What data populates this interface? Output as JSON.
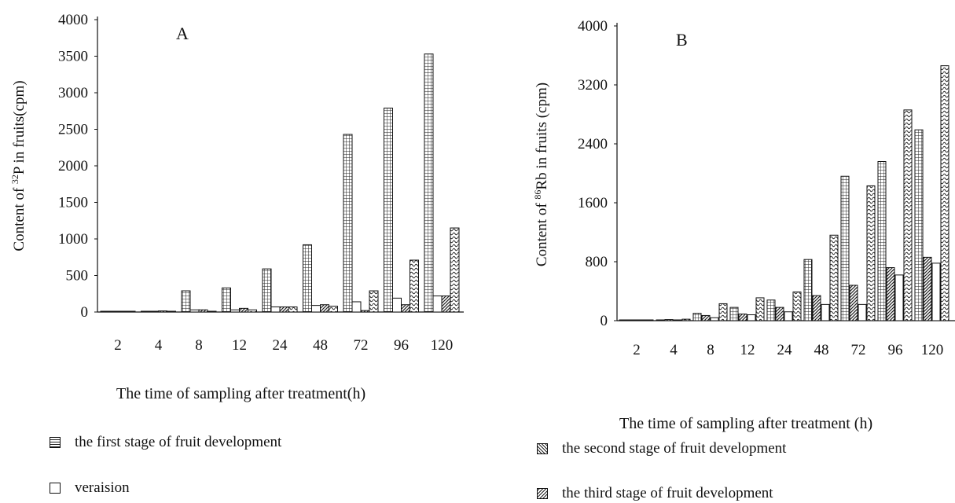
{
  "figure": {
    "legend": [
      {
        "key": "s1",
        "label": "the first stage of fruit development",
        "pattern": "grid"
      },
      {
        "key": "v",
        "label": "veraision",
        "pattern": "box"
      },
      {
        "key": "s2",
        "label": "the second stage of fruit development",
        "pattern": "diag"
      },
      {
        "key": "s3",
        "label": "the third stage of fruit development",
        "pattern": "wave"
      }
    ]
  },
  "chart_data": [
    {
      "type": "bar",
      "panel_label": "A",
      "xlabel": "The time of sampling after treatment(h)",
      "ylabel_prefix": "Content of ",
      "ylabel_sup": "32",
      "ylabel_suffix": "P in fruits(cpm)",
      "categories": [
        "2",
        "4",
        "8",
        "12",
        "24",
        "48",
        "72",
        "96",
        "120"
      ],
      "ylim": [
        0,
        4000
      ],
      "yticks": [
        "0",
        "500",
        "1000",
        "1500",
        "2000",
        "2500",
        "3000",
        "3500",
        "4000"
      ],
      "series": [
        {
          "name": "the first stage of fruit development",
          "pattern": "grid",
          "values": [
            5,
            10,
            290,
            330,
            590,
            920,
            2430,
            2790,
            3530
          ]
        },
        {
          "name": "veraision",
          "pattern": "box",
          "values": [
            5,
            10,
            30,
            30,
            70,
            90,
            140,
            190,
            220
          ]
        },
        {
          "name": "the second stage of fruit development",
          "pattern": "diag",
          "values": [
            5,
            15,
            30,
            50,
            70,
            100,
            20,
            100,
            220
          ]
        },
        {
          "name": "the third stage of fruit development",
          "pattern": "wave",
          "values": [
            5,
            5,
            5,
            30,
            70,
            80,
            290,
            710,
            1150
          ]
        }
      ]
    },
    {
      "type": "bar",
      "panel_label": "B",
      "xlabel": "The time of sampling after treatment (h)",
      "ylabel_prefix": "Content of  ",
      "ylabel_sup": "86",
      "ylabel_suffix": "Rb in fruits (cpm)",
      "categories": [
        "2",
        "4",
        "8",
        "12",
        "24",
        "48",
        "72",
        "96",
        "120"
      ],
      "ylim": [
        0,
        4000
      ],
      "yticks": [
        "0",
        "800",
        "1600",
        "2400",
        "3200",
        "4000"
      ],
      "series": [
        {
          "name": "the first stage of fruit development",
          "pattern": "grid",
          "values": [
            5,
            10,
            100,
            180,
            280,
            830,
            1960,
            2160,
            2590
          ]
        },
        {
          "name": "the second stage of fruit development",
          "pattern": "diag",
          "values": [
            5,
            15,
            70,
            90,
            180,
            340,
            480,
            720,
            860
          ]
        },
        {
          "name": "veraision",
          "pattern": "box",
          "values": [
            5,
            10,
            40,
            80,
            120,
            220,
            220,
            620,
            780
          ]
        },
        {
          "name": "the third stage of fruit development",
          "pattern": "wave",
          "values": [
            5,
            20,
            230,
            310,
            390,
            1160,
            1830,
            2860,
            3460
          ]
        }
      ]
    }
  ]
}
